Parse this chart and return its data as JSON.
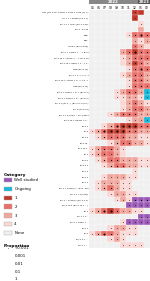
{
  "months": [
    "05",
    "06",
    "07",
    "08",
    "09",
    "10",
    "11",
    "12",
    "01",
    "02"
  ],
  "col_year": [
    "2022",
    "2022",
    "2022",
    "2022",
    "2022",
    "2022",
    "2022",
    "2022",
    "2023",
    "2023"
  ],
  "cat_colors": {
    "Well studied": "#9b59b6",
    "Ongoing": "#1ab8d8",
    "1": "#c0392b",
    "2": "#e8706a",
    "3": "#f0a89e",
    "4": "#f9d8d5",
    "0": "#f0f0f0"
  },
  "rows": [
    {
      "label": "XBF | BA.2.75 + RbdT + Fxxx + Fxxx (C1.1)",
      "cells": [
        "0",
        "0",
        "0",
        "0",
        "0",
        "0",
        "0",
        "1",
        "1",
        "0"
      ],
      "dots": [
        0,
        0,
        0,
        0,
        0,
        0,
        0,
        1,
        0,
        0
      ]
    },
    {
      "label": "Ch 1.1 + K1850 (Ch 1.1)",
      "cells": [
        "0",
        "0",
        "0",
        "0",
        "0",
        "0",
        "0",
        "1",
        "0",
        "0"
      ],
      "dots": [
        0,
        0,
        0,
        0,
        0,
        0,
        0,
        1,
        0,
        0
      ]
    },
    {
      "label": "BA.1.1 + L84A (BA.1.1-40)",
      "cells": [
        "0",
        "0",
        "0",
        "0",
        "0",
        "0",
        "0",
        "0",
        "4",
        "0"
      ],
      "dots": [
        0,
        0,
        0,
        0,
        0,
        0,
        0,
        0,
        1,
        0
      ]
    },
    {
      "label": "BA.2 - K1-42",
      "cells": [
        "0",
        "0",
        "0",
        "0",
        "0",
        "0",
        "0",
        "0",
        "3",
        "0"
      ],
      "dots": [
        0,
        0,
        0,
        0,
        0,
        0,
        0,
        0,
        0,
        0
      ]
    },
    {
      "label": "XBB",
      "cells": [
        "0",
        "0",
        "0",
        "0",
        "0",
        "0",
        "4",
        "2",
        "2",
        "2"
      ],
      "dots": [
        0,
        0,
        0,
        0,
        0,
        0,
        1,
        2,
        3,
        2
      ]
    },
    {
      "label": "XBC",
      "cells": [
        "0",
        "0",
        "0",
        "0",
        "0",
        "0",
        "0",
        "3",
        "4",
        "3"
      ],
      "dots": [
        0,
        0,
        0,
        0,
        0,
        0,
        0,
        1,
        1,
        1
      ]
    },
    {
      "label": "CM.8.1 (BA.2.3.20)",
      "cells": [
        "0",
        "0",
        "0",
        "0",
        "0",
        "0",
        "0",
        "2",
        "3",
        "4"
      ],
      "dots": [
        0,
        0,
        0,
        0,
        0,
        0,
        0,
        1,
        1,
        0
      ]
    },
    {
      "label": "BA.5 + L452R + ... + BA.5",
      "cells": [
        "0",
        "0",
        "0",
        "0",
        "0",
        "3",
        "2",
        "1",
        "2",
        "2"
      ],
      "dots": [
        0,
        0,
        0,
        0,
        0,
        1,
        2,
        3,
        2,
        2
      ]
    },
    {
      "label": "BA.2.75 + A452R + ... + BA.2.75",
      "cells": [
        "0",
        "0",
        "0",
        "0",
        "0",
        "4",
        "3",
        "2",
        "2",
        "2"
      ],
      "dots": [
        0,
        0,
        0,
        0,
        0,
        1,
        1,
        2,
        2,
        2
      ]
    },
    {
      "label": "BA.2.75 + RbdT + F... + F...",
      "cells": [
        "0",
        "0",
        "0",
        "0",
        "0",
        "4",
        "3",
        "1",
        "2",
        "3"
      ],
      "dots": [
        0,
        0,
        0,
        0,
        0,
        0,
        1,
        2,
        2,
        1
      ]
    },
    {
      "label": "XBB (BA.2.75)",
      "cells": [
        "0",
        "0",
        "0",
        "0",
        "0",
        "0",
        "4",
        "2",
        "2",
        "2"
      ],
      "dots": [
        0,
        0,
        0,
        0,
        0,
        0,
        1,
        2,
        3,
        2
      ]
    },
    {
      "label": "BA.5 + K...? + K...?",
      "cells": [
        "0",
        "0",
        "0",
        "0",
        "0",
        "4",
        "3",
        "2",
        "2",
        "3"
      ],
      "dots": [
        0,
        0,
        0,
        0,
        0,
        1,
        1,
        2,
        2,
        1
      ]
    },
    {
      "label": "BA.2.75 + A452T + K...? + K...?",
      "cells": [
        "0",
        "0",
        "0",
        "0",
        "0",
        "0",
        "4",
        "2",
        "2",
        "3"
      ],
      "dots": [
        0,
        0,
        0,
        0,
        0,
        0,
        1,
        2,
        2,
        1
      ]
    },
    {
      "label": "XBB (BA.2.75)",
      "cells": [
        "0",
        "0",
        "0",
        "0",
        "0",
        "0",
        "4",
        "2",
        "2",
        "2"
      ],
      "dots": [
        0,
        0,
        0,
        0,
        0,
        0,
        1,
        2,
        2,
        1
      ]
    },
    {
      "label": "BA.5 + R346T + K...? (BA.5.1)",
      "cells": [
        "0",
        "0",
        "0",
        "0",
        "4",
        "3",
        "2",
        "2",
        "3",
        "Ongoing"
      ],
      "dots": [
        0,
        0,
        0,
        0,
        1,
        1,
        2,
        2,
        1,
        1
      ]
    },
    {
      "label": "BA.5 + R346T + K... (BA.5.1)",
      "cells": [
        "0",
        "0",
        "0",
        "0",
        "4",
        "4",
        "3",
        "3",
        "4",
        "Ongoing"
      ],
      "dots": [
        0,
        0,
        0,
        0,
        1,
        1,
        1,
        1,
        1,
        1
      ]
    },
    {
      "label": "BA.1.1 (BA.1...) (BA x ??? x ???)",
      "cells": [
        "0",
        "0",
        "0",
        "0",
        "0",
        "4",
        "3",
        "2",
        "3",
        "4"
      ],
      "dots": [
        0,
        0,
        0,
        0,
        0,
        0,
        1,
        2,
        1,
        1
      ]
    },
    {
      "label": "BA.1 (BA.5.22)",
      "cells": [
        "0",
        "0",
        "0",
        "0",
        "0",
        "4",
        "3",
        "2",
        "2",
        "3"
      ],
      "dots": [
        0,
        0,
        0,
        0,
        0,
        1,
        1,
        2,
        2,
        1
      ]
    },
    {
      "label": "BA.4 + R(xyz)? = BA.4.6xxx",
      "cells": [
        "0",
        "0",
        "0",
        "4",
        "3",
        "2",
        "2",
        "2",
        "3",
        "3"
      ],
      "dots": [
        0,
        0,
        0,
        1,
        1,
        2,
        2,
        2,
        1,
        1
      ]
    },
    {
      "label": "BA.2.75 + R346T + F...",
      "cells": [
        "0",
        "0",
        "0",
        "0",
        "0",
        "0",
        "4",
        "3",
        "3",
        "Ongoing"
      ],
      "dots": [
        0,
        0,
        0,
        0,
        0,
        0,
        1,
        1,
        1,
        1
      ]
    },
    {
      "label": "BA.5.1",
      "cells": [
        "0",
        "0",
        "4",
        "3",
        "2",
        "1",
        "1",
        "1",
        "2",
        "2"
      ],
      "dots": [
        0,
        0,
        1,
        2,
        3,
        3,
        3,
        3,
        2,
        2
      ]
    },
    {
      "label": "BA.5",
      "cells": [
        "4",
        "3",
        "2",
        "1",
        "1",
        "1",
        "2",
        "2",
        "3",
        "3"
      ],
      "dots": [
        1,
        2,
        3,
        3,
        3,
        3,
        2,
        2,
        1,
        1
      ]
    },
    {
      "label": "BA.4.6",
      "cells": [
        "0",
        "4",
        "3",
        "2",
        "2",
        "2",
        "3",
        "3",
        "4",
        "4"
      ],
      "dots": [
        0,
        1,
        2,
        2,
        2,
        2,
        1,
        1,
        1,
        1
      ]
    },
    {
      "label": "BA.2.75",
      "cells": [
        "0",
        "0",
        "0",
        "4",
        "3",
        "2",
        "2",
        "3",
        "3",
        "4"
      ],
      "dots": [
        0,
        0,
        0,
        1,
        2,
        2,
        2,
        1,
        1,
        1
      ]
    },
    {
      "label": "BA.2.12.1",
      "cells": [
        "4",
        "3",
        "2",
        "2",
        "3",
        "4",
        "0",
        "0",
        "0",
        "0"
      ],
      "dots": [
        1,
        2,
        2,
        2,
        1,
        1,
        0,
        0,
        0,
        0
      ]
    },
    {
      "label": "BA.4",
      "cells": [
        "4",
        "3",
        "2",
        "2",
        "3",
        "4",
        "0",
        "0",
        "0",
        "0"
      ],
      "dots": [
        1,
        2,
        2,
        1,
        1,
        0,
        0,
        0,
        0,
        0
      ]
    },
    {
      "label": "BA.5.2",
      "cells": [
        "0",
        "4",
        "3",
        "2",
        "2",
        "3",
        "3",
        "3",
        "4",
        "4"
      ],
      "dots": [
        0,
        1,
        2,
        2,
        2,
        1,
        1,
        1,
        1,
        1
      ]
    },
    {
      "label": "BA.5.2.1",
      "cells": [
        "0",
        "0",
        "4",
        "3",
        "2",
        "2",
        "3",
        "3",
        "4",
        "4"
      ],
      "dots": [
        0,
        0,
        1,
        2,
        2,
        2,
        1,
        1,
        1,
        1
      ]
    },
    {
      "label": "BA.2.3",
      "cells": [
        "0",
        "0",
        "0",
        "0",
        "0",
        "0",
        "0",
        "4",
        "0",
        "0"
      ],
      "dots": [
        0,
        0,
        0,
        0,
        0,
        0,
        0,
        1,
        0,
        0
      ]
    },
    {
      "label": "BA.5.3",
      "cells": [
        "0",
        "0",
        "4",
        "3",
        "3",
        "3",
        "4",
        "4",
        "0",
        "0"
      ],
      "dots": [
        0,
        0,
        1,
        1,
        1,
        1,
        1,
        1,
        0,
        0
      ]
    },
    {
      "label": "BA.4.1",
      "cells": [
        "0",
        "4",
        "3",
        "3",
        "3",
        "4",
        "4",
        "0",
        "0",
        "0"
      ],
      "dots": [
        0,
        1,
        1,
        1,
        1,
        1,
        1,
        0,
        0,
        0
      ]
    },
    {
      "label": "BA.4 + R(lmn)T = BA4...xxx",
      "cells": [
        "0",
        "4",
        "3",
        "2",
        "3",
        "4",
        "4",
        "0",
        "0",
        "0"
      ],
      "dots": [
        0,
        1,
        2,
        2,
        1,
        1,
        1,
        0,
        0,
        0
      ]
    },
    {
      "label": "BA.4.1 + R(xyz)T",
      "cells": [
        "0",
        "0",
        "0",
        "4",
        "3",
        "3",
        "4",
        "4",
        "0",
        "0"
      ],
      "dots": [
        0,
        0,
        0,
        1,
        1,
        1,
        1,
        1,
        0,
        0
      ]
    },
    {
      "label": "BA.4 = R(lmn)T (BA.4.1.1)",
      "cells": [
        "0",
        "0",
        "0",
        "0",
        "4",
        "3",
        "4",
        "Well studied",
        "Well studied",
        "Well studied"
      ],
      "dots": [
        0,
        0,
        0,
        0,
        1,
        1,
        1,
        2,
        2,
        2
      ]
    },
    {
      "label": "BA.2.10.4 (BA.2.10 + ...)",
      "cells": [
        "0",
        "0",
        "0",
        "0",
        "0",
        "0",
        "Well studied",
        "Well studied",
        "Well studied",
        "Well studied"
      ],
      "dots": [
        0,
        0,
        0,
        0,
        0,
        0,
        1,
        1,
        1,
        1
      ]
    },
    {
      "label": "BA.1",
      "cells": [
        "4",
        "3",
        "2",
        "1",
        "2",
        "3",
        "3",
        "4",
        "4",
        "0"
      ],
      "dots": [
        1,
        2,
        3,
        3,
        2,
        1,
        1,
        1,
        1,
        0
      ]
    },
    {
      "label": "BA.1 + F...",
      "cells": [
        "0",
        "0",
        "0",
        "0",
        "0",
        "0",
        "0",
        "0",
        "Well studied",
        "Well studied"
      ],
      "dots": [
        0,
        0,
        0,
        0,
        0,
        0,
        0,
        0,
        1,
        1
      ]
    },
    {
      "label": "BA.2 + D480 + ...",
      "cells": [
        "0",
        "0",
        "0",
        "0",
        "0",
        "4",
        "Well studied",
        "Well studied",
        "Well studied",
        "Well studied"
      ],
      "dots": [
        0,
        0,
        0,
        0,
        0,
        1,
        1,
        1,
        1,
        1
      ]
    },
    {
      "label": "BA.2.1",
      "cells": [
        "0",
        "0",
        "0",
        "4",
        "3",
        "3",
        "4",
        "4",
        "0",
        "0"
      ],
      "dots": [
        0,
        0,
        0,
        1,
        1,
        1,
        1,
        1,
        0,
        0
      ]
    },
    {
      "label": "BA.2",
      "cells": [
        "4",
        "3",
        "2",
        "2",
        "3",
        "4",
        "4",
        "4",
        "0",
        "0"
      ],
      "dots": [
        1,
        2,
        3,
        2,
        1,
        1,
        1,
        1,
        0,
        0
      ]
    },
    {
      "label": "BA.2.3 + ...",
      "cells": [
        "0",
        "0",
        "0",
        "4",
        "3",
        "4",
        "0",
        "0",
        "0",
        "0"
      ],
      "dots": [
        0,
        0,
        0,
        1,
        1,
        1,
        0,
        0,
        0,
        0
      ]
    },
    {
      "label": "BA.2 + ...",
      "cells": [
        "0",
        "0",
        "0",
        "0",
        "0",
        "4",
        "4",
        "4",
        "4",
        "0"
      ],
      "dots": [
        0,
        0,
        0,
        0,
        0,
        1,
        1,
        1,
        1,
        0
      ]
    }
  ],
  "legend_cats": [
    "Well studied",
    "Ongoing",
    "1",
    "2",
    "3",
    "4",
    "None"
  ],
  "legend_cat_colors": [
    "#9b59b6",
    "#1ab8d8",
    "#c0392b",
    "#e8706a",
    "#f0a89e",
    "#f9d8d5",
    "#f0f0f0"
  ],
  "prop_labels": [
    "<0.001",
    "0.001",
    "0.01",
    "0.1",
    "1"
  ],
  "prop_ms": [
    0.4,
    0.9,
    1.5,
    2.5,
    3.8
  ],
  "year2022_color": "#888888",
  "year2023_color": "#555555",
  "bg_color": "#ffffff",
  "grid_line_color": "#ffffff",
  "label_fontsize": 1.5,
  "month_fontsize": 2.2,
  "year_fontsize": 2.8,
  "legend_fontsize": 2.8,
  "legend_title_fontsize": 3.2
}
